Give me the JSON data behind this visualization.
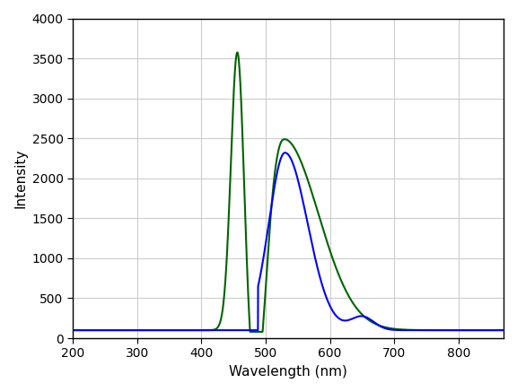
{
  "title": "",
  "xlabel": "Wavelength (nm)",
  "ylabel": "Intensity",
  "xlim": [
    200,
    870
  ],
  "ylim": [
    0,
    4000
  ],
  "yticks": [
    0,
    500,
    1000,
    1500,
    2000,
    2500,
    3000,
    3500,
    4000
  ],
  "xticks": [
    200,
    300,
    400,
    500,
    600,
    700,
    800
  ],
  "background_color": "#ffffff",
  "grid_color": "#cccccc",
  "line1_color": "#006400",
  "line2_color": "#0000ff",
  "line_width": 1.5
}
